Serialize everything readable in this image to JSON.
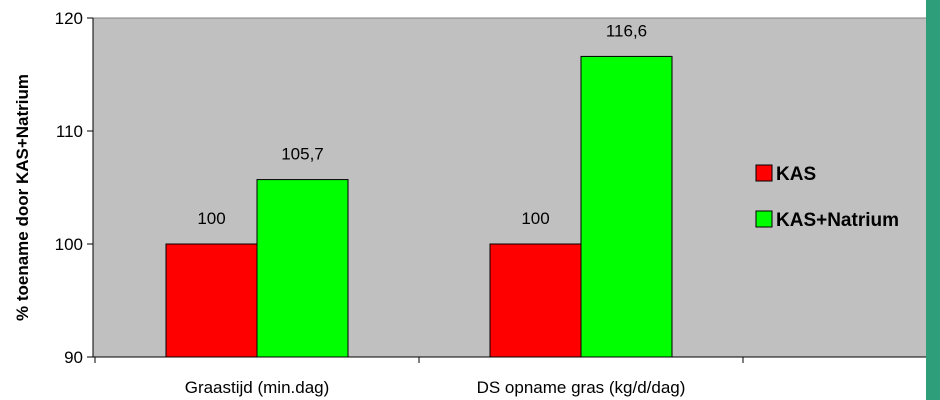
{
  "chart_data": {
    "type": "bar",
    "title": "",
    "xlabel": "",
    "ylabel": "% toename door KAS+Natrium",
    "categories": [
      "Graastijd (min.dag)",
      "DS opname gras (kg/d/dag)"
    ],
    "series": [
      {
        "name": "KAS",
        "values": [
          100,
          100
        ],
        "labels": [
          "100",
          "100"
        ],
        "color": "#ff0000"
      },
      {
        "name": "KAS+Natrium",
        "values": [
          105.7,
          116.6
        ],
        "labels": [
          "105,7",
          "116,6"
        ],
        "color": "#00ff00"
      }
    ],
    "ylim": [
      90,
      120
    ],
    "yticks": [
      90,
      100,
      110,
      120
    ],
    "ytick_labels": [
      "90",
      "100",
      "110",
      "120"
    ],
    "grid": false,
    "plot_background": "#c0c0c0",
    "legend_position": "right"
  },
  "colors": {
    "edge_strip": "#2e9e7a"
  }
}
